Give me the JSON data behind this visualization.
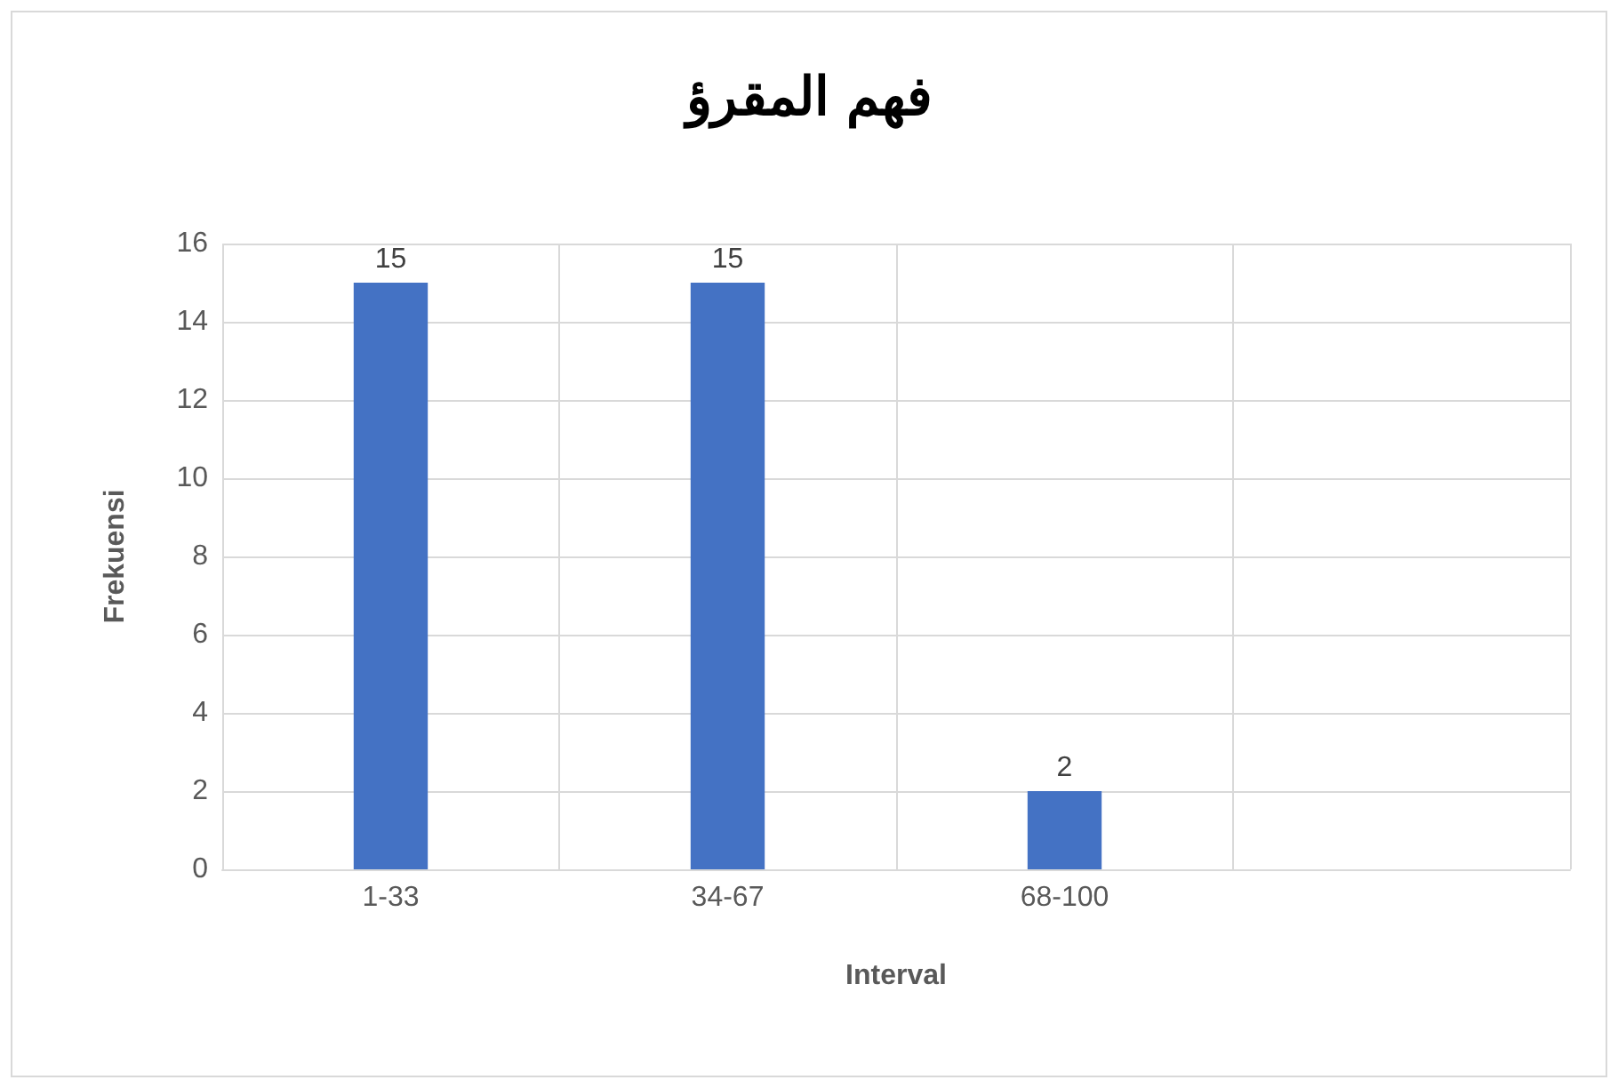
{
  "chart_data": {
    "type": "bar",
    "title": "فهم المقرؤ",
    "xlabel": "Interval",
    "ylabel": "Frekuensi",
    "categories": [
      "1-33",
      "34-67",
      "68-100",
      null
    ],
    "values": [
      15,
      15,
      2,
      null
    ],
    "color": "#4472c4",
    "ylim": [
      0,
      16
    ],
    "yticks": [
      0,
      2,
      4,
      6,
      8,
      10,
      12,
      14,
      16
    ],
    "grid": true,
    "data_labels": true
  }
}
